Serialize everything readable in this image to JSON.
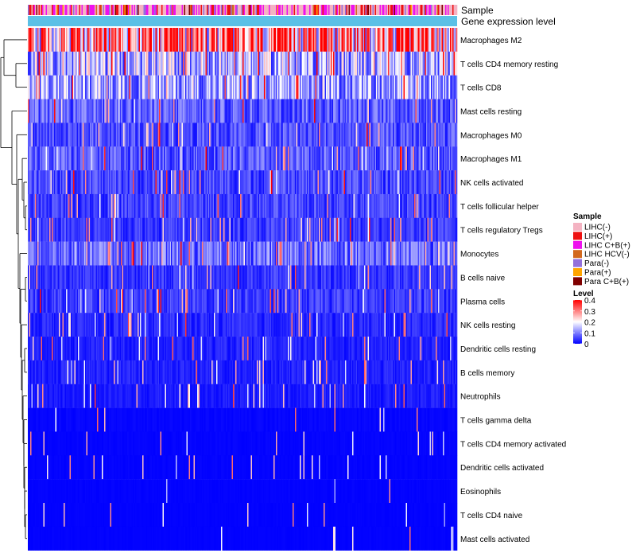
{
  "chart_data": {
    "type": "heatmap",
    "title": "",
    "annotation_tracks": [
      {
        "label": "Sample",
        "type": "categorical"
      },
      {
        "label": "Gene expression level",
        "type": "constant",
        "color": "#5bc0e6"
      }
    ],
    "rows": [
      {
        "name": "Macrophages M2",
        "mean": 0.27
      },
      {
        "name": "T cells CD4 memory resting",
        "mean": 0.14
      },
      {
        "name": "T cells CD8",
        "mean": 0.12
      },
      {
        "name": "Mast cells resting",
        "mean": 0.07
      },
      {
        "name": "Macrophages M0",
        "mean": 0.06
      },
      {
        "name": "Macrophages M1",
        "mean": 0.065
      },
      {
        "name": "NK cells activated",
        "mean": 0.055
      },
      {
        "name": "T cells follicular helper",
        "mean": 0.05
      },
      {
        "name": "T cells regulatory  Tregs",
        "mean": 0.045
      },
      {
        "name": "Monocytes",
        "mean": 0.085
      },
      {
        "name": "B cells naive",
        "mean": 0.04
      },
      {
        "name": "Plasma cells",
        "mean": 0.045
      },
      {
        "name": "NK cells resting",
        "mean": 0.03
      },
      {
        "name": "Dendritic cells resting",
        "mean": 0.025
      },
      {
        "name": "B cells memory",
        "mean": 0.025
      },
      {
        "name": "Neutrophils",
        "mean": 0.02
      },
      {
        "name": "T cells gamma delta",
        "mean": 0.008
      },
      {
        "name": "T cells CD4 memory activated",
        "mean": 0.006
      },
      {
        "name": "Dendritic cells activated",
        "mean": 0.005
      },
      {
        "name": "Eosinophils",
        "mean": 0.004
      },
      {
        "name": "T cells CD4 naive",
        "mean": 0.003
      },
      {
        "name": "Mast cells activated",
        "mean": 0.003
      }
    ],
    "legend_sample": {
      "title": "Sample",
      "items": [
        {
          "label": "LIHC(-)",
          "color": "#f4b3c2"
        },
        {
          "label": "LIHC(+)",
          "color": "#ee1111"
        },
        {
          "label": "LIHC C+B(+)",
          "color": "#ee11ee"
        },
        {
          "label": "LIHC HCV(-)",
          "color": "#d2691e"
        },
        {
          "label": "Para(-)",
          "color": "#9370db"
        },
        {
          "label": "Para(+)",
          "color": "#ffa500"
        },
        {
          "label": "Para C+B(+)",
          "color": "#800000"
        }
      ]
    },
    "legend_level": {
      "title": "Level",
      "range": [
        0,
        0.4
      ],
      "ticks": [
        "0.4",
        "0.3",
        "0.2",
        "0.1",
        "0"
      ],
      "colors": {
        "low": "#0000ff",
        "mid": "#ffffff",
        "high": "#ff0000"
      }
    },
    "columns_note": "approx. 370 samples, clustered"
  }
}
